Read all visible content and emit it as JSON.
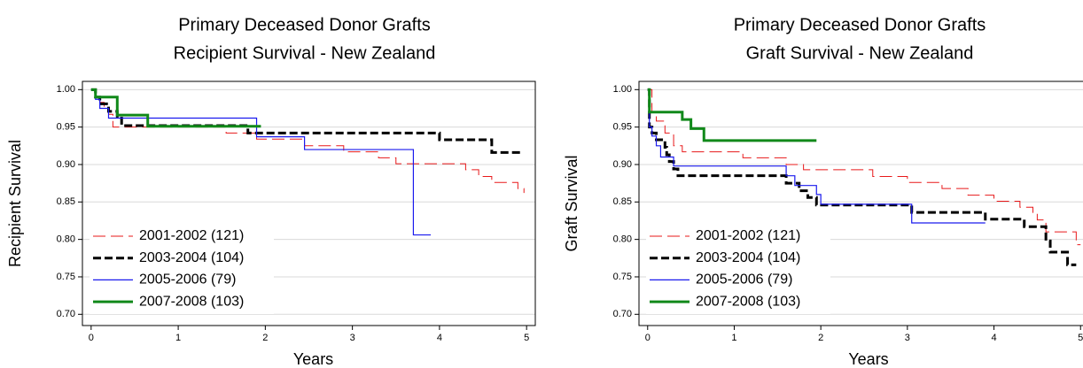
{
  "chart_data": [
    {
      "type": "line",
      "step": true,
      "title": "Primary Deceased Donor Grafts",
      "subtitle": "Recipient Survival  -  New Zealand",
      "x_label": "Years",
      "y_label": "Recipient Survival",
      "xlim": [
        -0.1,
        5.1
      ],
      "xticks": [
        0,
        1,
        2,
        3,
        4,
        5
      ],
      "ylim": [
        0.685,
        1.011
      ],
      "yticks": [
        {
          "value": 0.7,
          "label": "0.70"
        },
        0.75,
        {
          "value": 0.8,
          "label": "0.80"
        },
        0.85,
        {
          "value": 0.9,
          "label": "0.90"
        },
        0.95,
        {
          "value": 1.0,
          "label": "1.00"
        }
      ],
      "grid": true,
      "legend": "lower left",
      "series": [
        {
          "name": "2001-2002 (121)",
          "color": "#e8191a",
          "dashed": true,
          "line_width": 1,
          "x": [
            0,
            0.05,
            0.1,
            0.15,
            0.2,
            0.25,
            1.55,
            1.9,
            2.45,
            2.9,
            3.3,
            3.5,
            4.3,
            4.45,
            4.6,
            4.9,
            4.97
          ],
          "values": [
            1.0,
            0.99,
            0.983,
            0.975,
            0.967,
            0.95,
            0.942,
            0.934,
            0.925,
            0.917,
            0.909,
            0.901,
            0.893,
            0.884,
            0.876,
            0.868,
            0.862
          ]
        },
        {
          "name": "2003-2004 (104)",
          "color": "#000000",
          "dashed": true,
          "line_width": 3,
          "x": [
            0,
            0.05,
            0.1,
            0.2,
            0.3,
            0.35,
            1.8,
            4.0,
            4.6,
            4.95
          ],
          "values": [
            1.0,
            0.99,
            0.981,
            0.971,
            0.962,
            0.952,
            0.942,
            0.933,
            0.916,
            0.916
          ]
        },
        {
          "name": "2005-2006 (79)",
          "color": "#1a1aee",
          "dashed": false,
          "line_width": 1.2,
          "x": [
            0,
            0.05,
            0.1,
            0.2,
            1.9,
            2.45,
            3.7,
            3.9
          ],
          "values": [
            1.0,
            0.987,
            0.975,
            0.962,
            0.937,
            0.92,
            0.806,
            0.806
          ]
        },
        {
          "name": "2007-2008 (103)",
          "color": "#11891a",
          "dashed": false,
          "line_width": 3,
          "x": [
            0,
            0.05,
            0.3,
            0.65,
            1.95
          ],
          "values": [
            1.0,
            0.99,
            0.966,
            0.951,
            0.951
          ]
        }
      ]
    },
    {
      "type": "line",
      "step": true,
      "title": "Primary Deceased Donor Grafts",
      "subtitle": "Graft Survival  -  New Zealand",
      "x_label": "Years",
      "y_label": "Graft Survival",
      "xlim": [
        -0.1,
        5.1
      ],
      "xticks": [
        0,
        1,
        2,
        3,
        4,
        5
      ],
      "ylim": [
        0.685,
        1.011
      ],
      "yticks": [
        {
          "value": 0.7,
          "label": "0.70"
        },
        0.75,
        {
          "value": 0.8,
          "label": "0.80"
        },
        0.85,
        {
          "value": 0.9,
          "label": "0.90"
        },
        0.95,
        {
          "value": 1.0,
          "label": "1.00"
        }
      ],
      "grid": true,
      "legend": "lower left",
      "series": [
        {
          "name": "2001-2002 (121)",
          "color": "#e8191a",
          "dashed": true,
          "line_width": 1,
          "x": [
            0,
            0.05,
            0.1,
            0.2,
            0.3,
            0.4,
            1.1,
            1.6,
            1.8,
            2.6,
            3.0,
            3.4,
            3.7,
            4.0,
            4.3,
            4.45,
            4.5,
            4.6,
            4.95,
            5.0
          ],
          "values": [
            1.0,
            0.97,
            0.958,
            0.942,
            0.925,
            0.917,
            0.909,
            0.9,
            0.893,
            0.884,
            0.876,
            0.868,
            0.859,
            0.851,
            0.843,
            0.835,
            0.826,
            0.81,
            0.793,
            0.793
          ]
        },
        {
          "name": "2003-2004 (104)",
          "color": "#000000",
          "dashed": true,
          "line_width": 3,
          "x": [
            0,
            0.02,
            0.05,
            0.1,
            0.2,
            0.22,
            0.25,
            0.3,
            0.35,
            1.6,
            1.75,
            1.85,
            1.95,
            3.05,
            3.9,
            4.35,
            4.6,
            4.65,
            4.85,
            4.95
          ],
          "values": [
            1.0,
            0.95,
            0.942,
            0.933,
            0.923,
            0.913,
            0.904,
            0.894,
            0.885,
            0.875,
            0.865,
            0.856,
            0.846,
            0.836,
            0.827,
            0.817,
            0.798,
            0.783,
            0.766,
            0.766
          ]
        },
        {
          "name": "2005-2006 (79)",
          "color": "#1a1aee",
          "dashed": false,
          "line_width": 1.2,
          "x": [
            0,
            0.02,
            0.05,
            0.1,
            0.15,
            0.3,
            1.6,
            1.7,
            1.95,
            2.0,
            3.05,
            3.9
          ],
          "values": [
            1.0,
            0.95,
            0.938,
            0.925,
            0.91,
            0.898,
            0.885,
            0.872,
            0.86,
            0.847,
            0.822,
            0.822
          ]
        },
        {
          "name": "2007-2008 (103)",
          "color": "#11891a",
          "dashed": false,
          "line_width": 3,
          "x": [
            0,
            0.02,
            0.4,
            0.5,
            0.65,
            1.95
          ],
          "values": [
            1.0,
            0.97,
            0.96,
            0.948,
            0.932,
            0.932
          ]
        }
      ]
    }
  ]
}
